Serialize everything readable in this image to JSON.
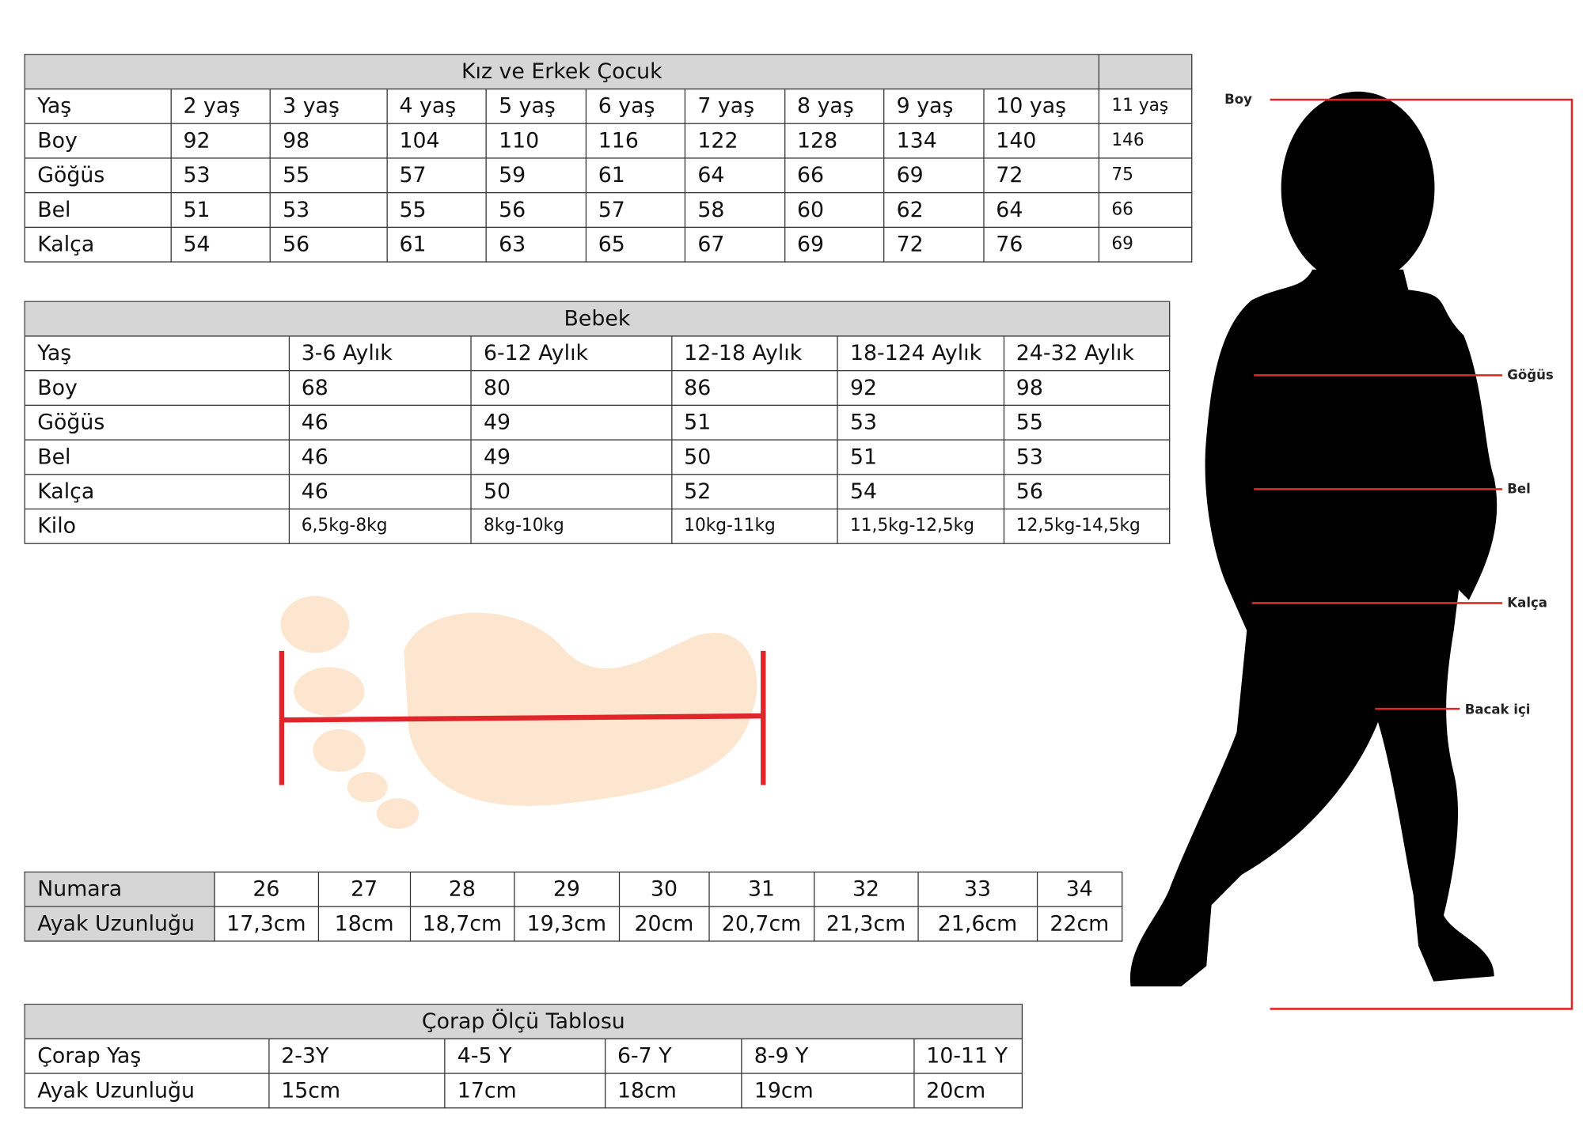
{
  "kids_table": {
    "title": "Kız ve Erkek Çocuk",
    "header": [
      "Yaş",
      "2 yaş",
      "3 yaş",
      "4 yaş",
      "5 yaş",
      "6 yaş",
      "7 yaş",
      "8 yaş",
      "9 yaş",
      "10 yaş",
      "11 yaş"
    ],
    "rows": [
      [
        "Boy",
        "92",
        "98",
        "104",
        "110",
        "116",
        "122",
        "128",
        "134",
        "140",
        "146"
      ],
      [
        "Göğüs",
        "53",
        "55",
        "57",
        "59",
        "61",
        "64",
        "66",
        "69",
        "72",
        "75"
      ],
      [
        "Bel",
        "51",
        "53",
        "55",
        "56",
        "57",
        "58",
        "60",
        "62",
        "64",
        "66"
      ],
      [
        "Kalça",
        "54",
        "56",
        "61",
        "63",
        "65",
        "67",
        "69",
        "72",
        "76",
        "69"
      ]
    ]
  },
  "baby_table": {
    "title": "Bebek",
    "header": [
      "Yaş",
      "3-6 Aylık",
      "6-12 Aylık",
      "12-18 Aylık",
      "18-124 Aylık",
      "24-32 Aylık"
    ],
    "rows": [
      [
        "Boy",
        "68",
        "80",
        "86",
        "92",
        "98"
      ],
      [
        "Göğüs",
        "46",
        "49",
        "51",
        "53",
        "55"
      ],
      [
        "Bel",
        "46",
        "49",
        "50",
        "51",
        "53"
      ],
      [
        "Kalça",
        "46",
        "50",
        "52",
        "54",
        "56"
      ],
      [
        "Kilo",
        "6,5kg-8kg",
        "8kg-10kg",
        "10kg-11kg",
        "11,5kg-12,5kg",
        "12,5kg-14,5kg"
      ]
    ]
  },
  "shoe_table": {
    "rows": [
      [
        "Numara",
        "26",
        "27",
        "28",
        "29",
        "30",
        "31",
        "32",
        "33",
        "34"
      ],
      [
        "Ayak Uzunluğu",
        "17,3cm",
        "18cm",
        "18,7cm",
        "19,3cm",
        "20cm",
        "20,7cm",
        "21,3cm",
        "21,6cm",
        "22cm"
      ]
    ]
  },
  "sock_table": {
    "title": "Çorap Ölçü Tablosu",
    "rows": [
      [
        "Çorap Yaş",
        "2-3Y",
        "4-5 Y",
        "6-7 Y",
        "8-9 Y",
        "10-11 Y"
      ],
      [
        "Ayak Uzunluğu",
        "15cm",
        "17cm",
        "18cm",
        "19cm",
        "20cm"
      ]
    ]
  },
  "figure": {
    "labels": [
      "Boy",
      "Göğüs",
      "Bel",
      "Kalça",
      "Bacak içi"
    ]
  }
}
